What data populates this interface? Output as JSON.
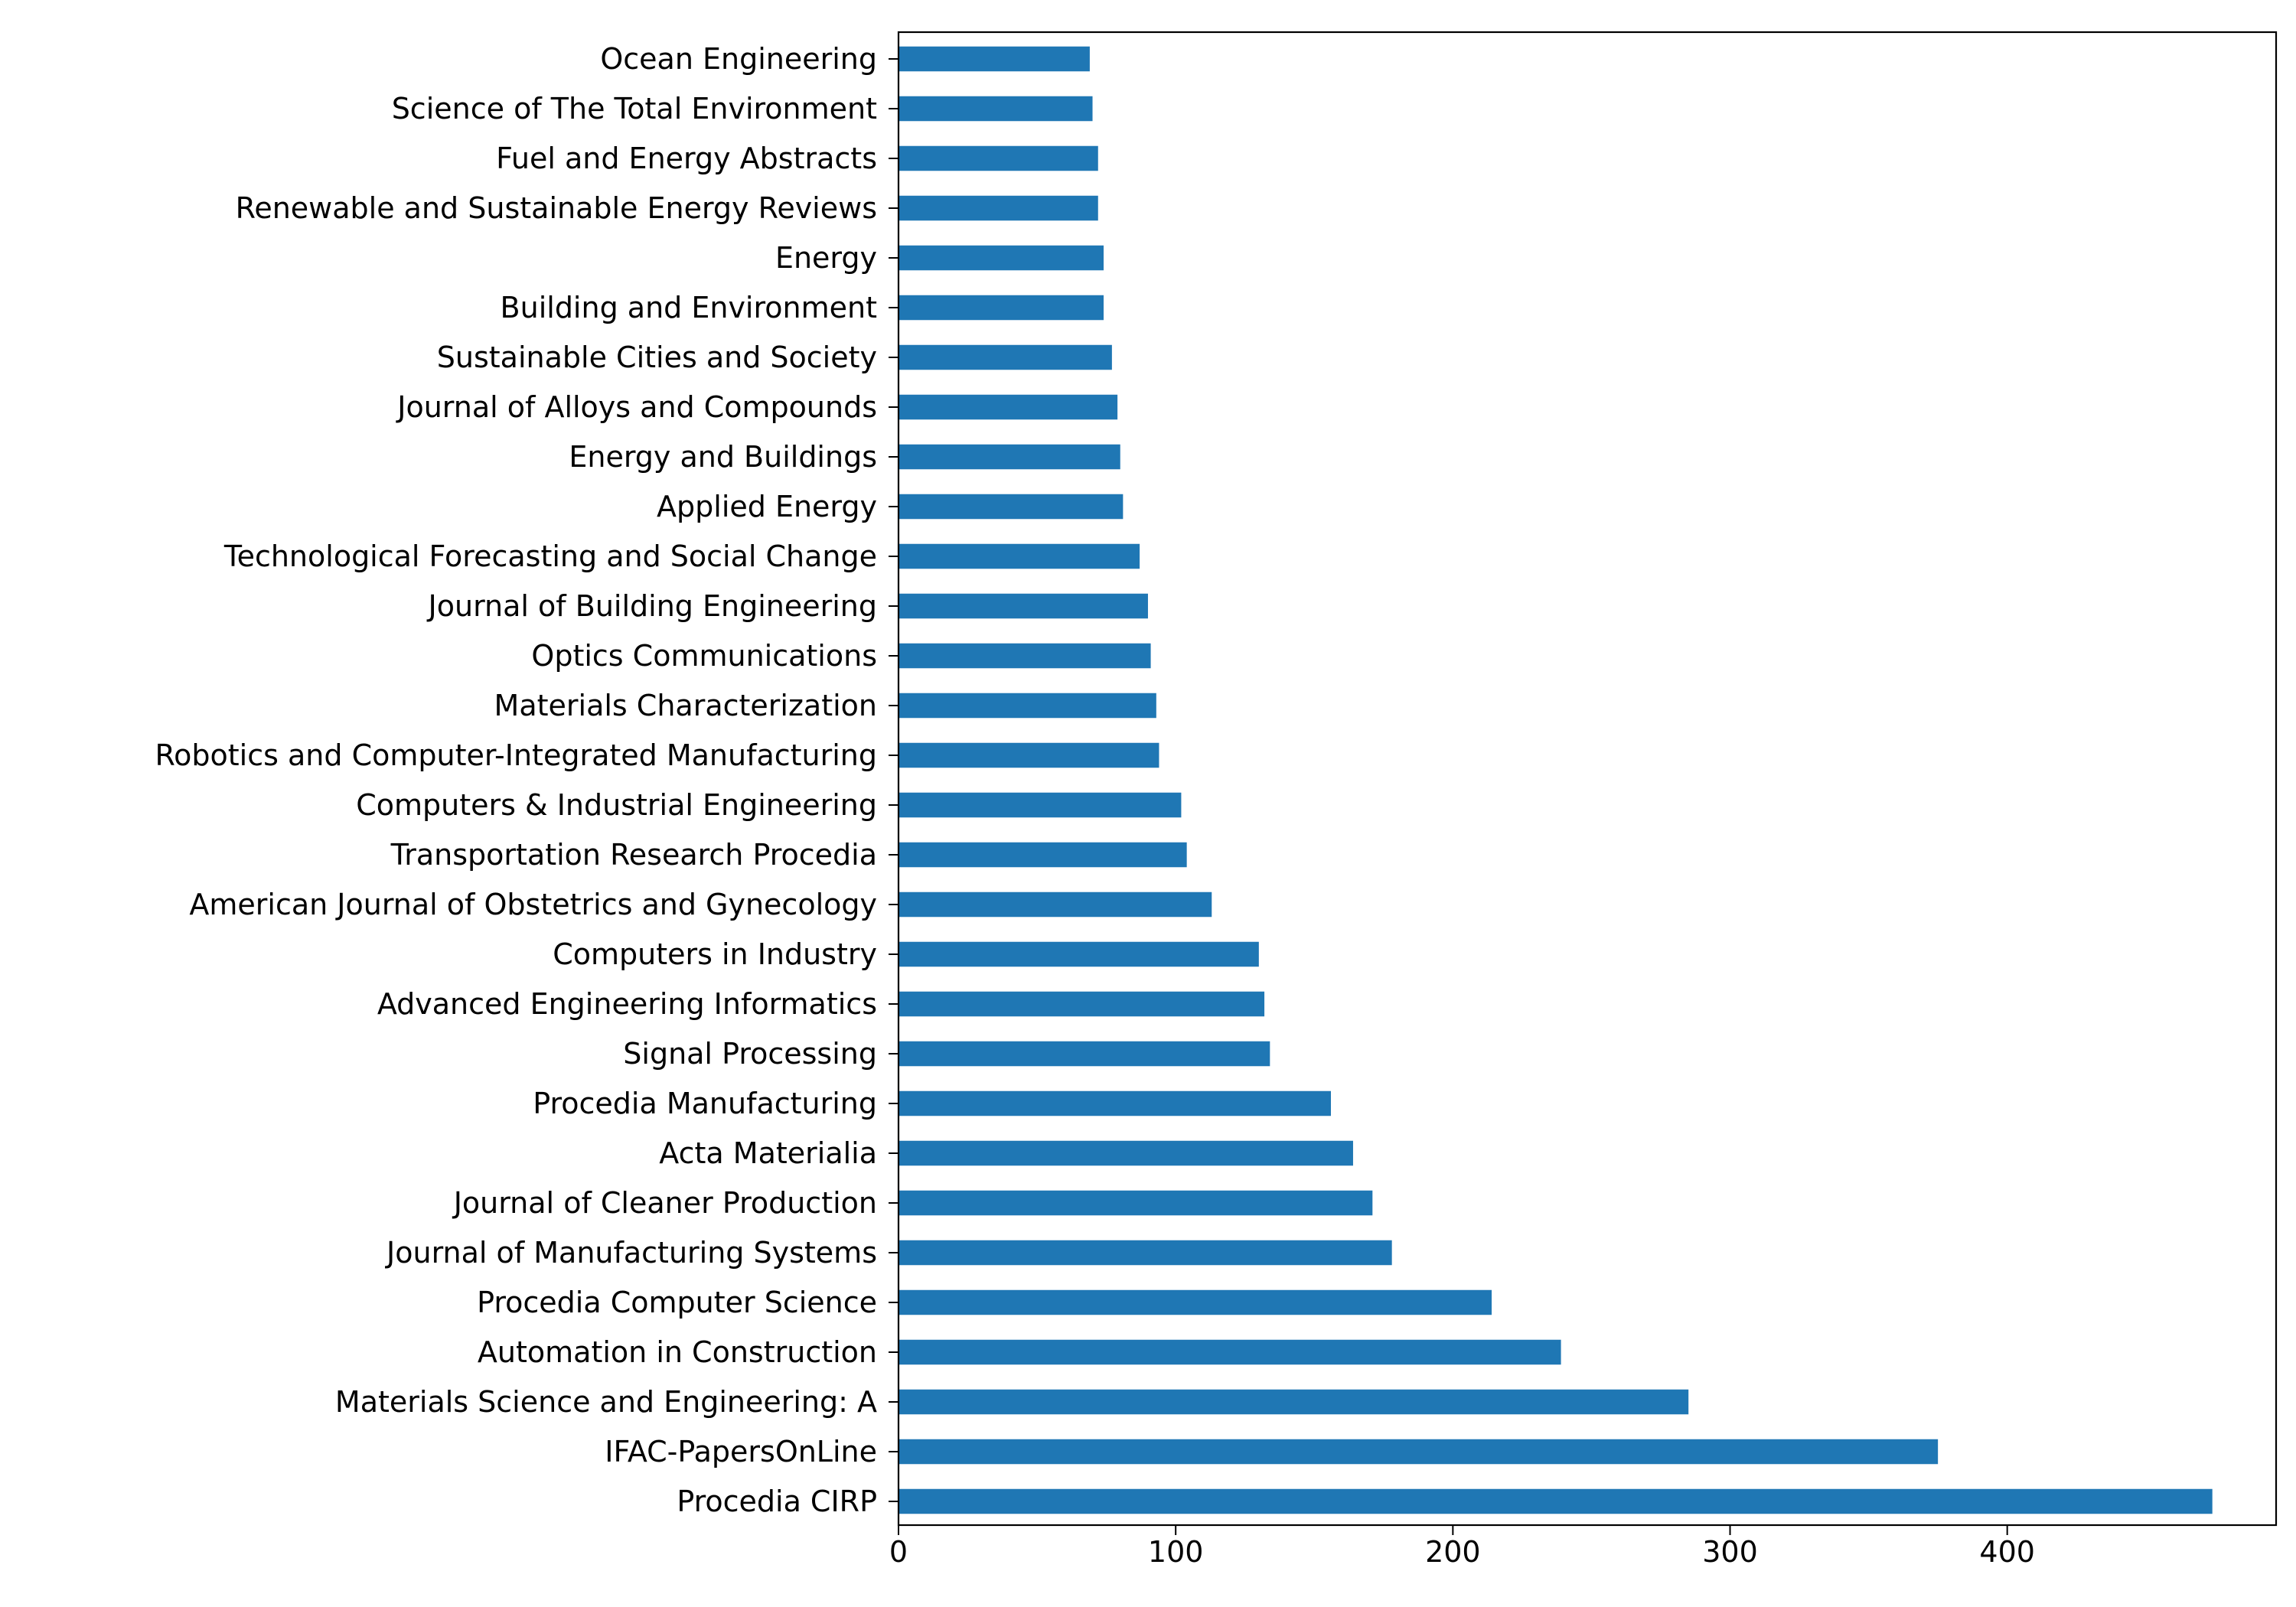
{
  "chart_data": {
    "type": "bar",
    "orientation": "horizontal",
    "title": "",
    "xlabel": "",
    "ylabel": "",
    "xlim": [
      0,
      497
    ],
    "xticks": [
      0,
      100,
      200,
      300,
      400
    ],
    "grid": false,
    "legend": "none",
    "bar_color": "#1f77b4",
    "categories": [
      "Procedia CIRP",
      "IFAC-PapersOnLine",
      "Materials Science and Engineering: A",
      "Automation in Construction",
      "Procedia Computer Science",
      "Journal of Manufacturing Systems",
      "Journal of Cleaner Production",
      "Acta Materialia",
      "Procedia Manufacturing",
      "Signal Processing",
      "Advanced Engineering Informatics",
      "Computers in Industry",
      "American Journal of Obstetrics and Gynecology",
      "Transportation Research Procedia",
      "Computers & Industrial Engineering",
      "Robotics and Computer-Integrated Manufacturing",
      "Materials Characterization",
      "Optics Communications",
      "Journal of Building Engineering",
      "Technological Forecasting and Social Change",
      "Applied Energy",
      "Energy and Buildings",
      "Journal of Alloys and Compounds",
      "Sustainable Cities and Society",
      "Building and Environment",
      "Energy",
      "Renewable and Sustainable Energy Reviews",
      "Fuel and Energy Abstracts",
      "Science of The Total Environment",
      "Ocean Engineering"
    ],
    "values": [
      474,
      375,
      285,
      239,
      214,
      178,
      171,
      164,
      156,
      134,
      132,
      130,
      113,
      104,
      102,
      94,
      93,
      91,
      90,
      87,
      81,
      80,
      79,
      77,
      74,
      74,
      72,
      72,
      70,
      69
    ]
  }
}
